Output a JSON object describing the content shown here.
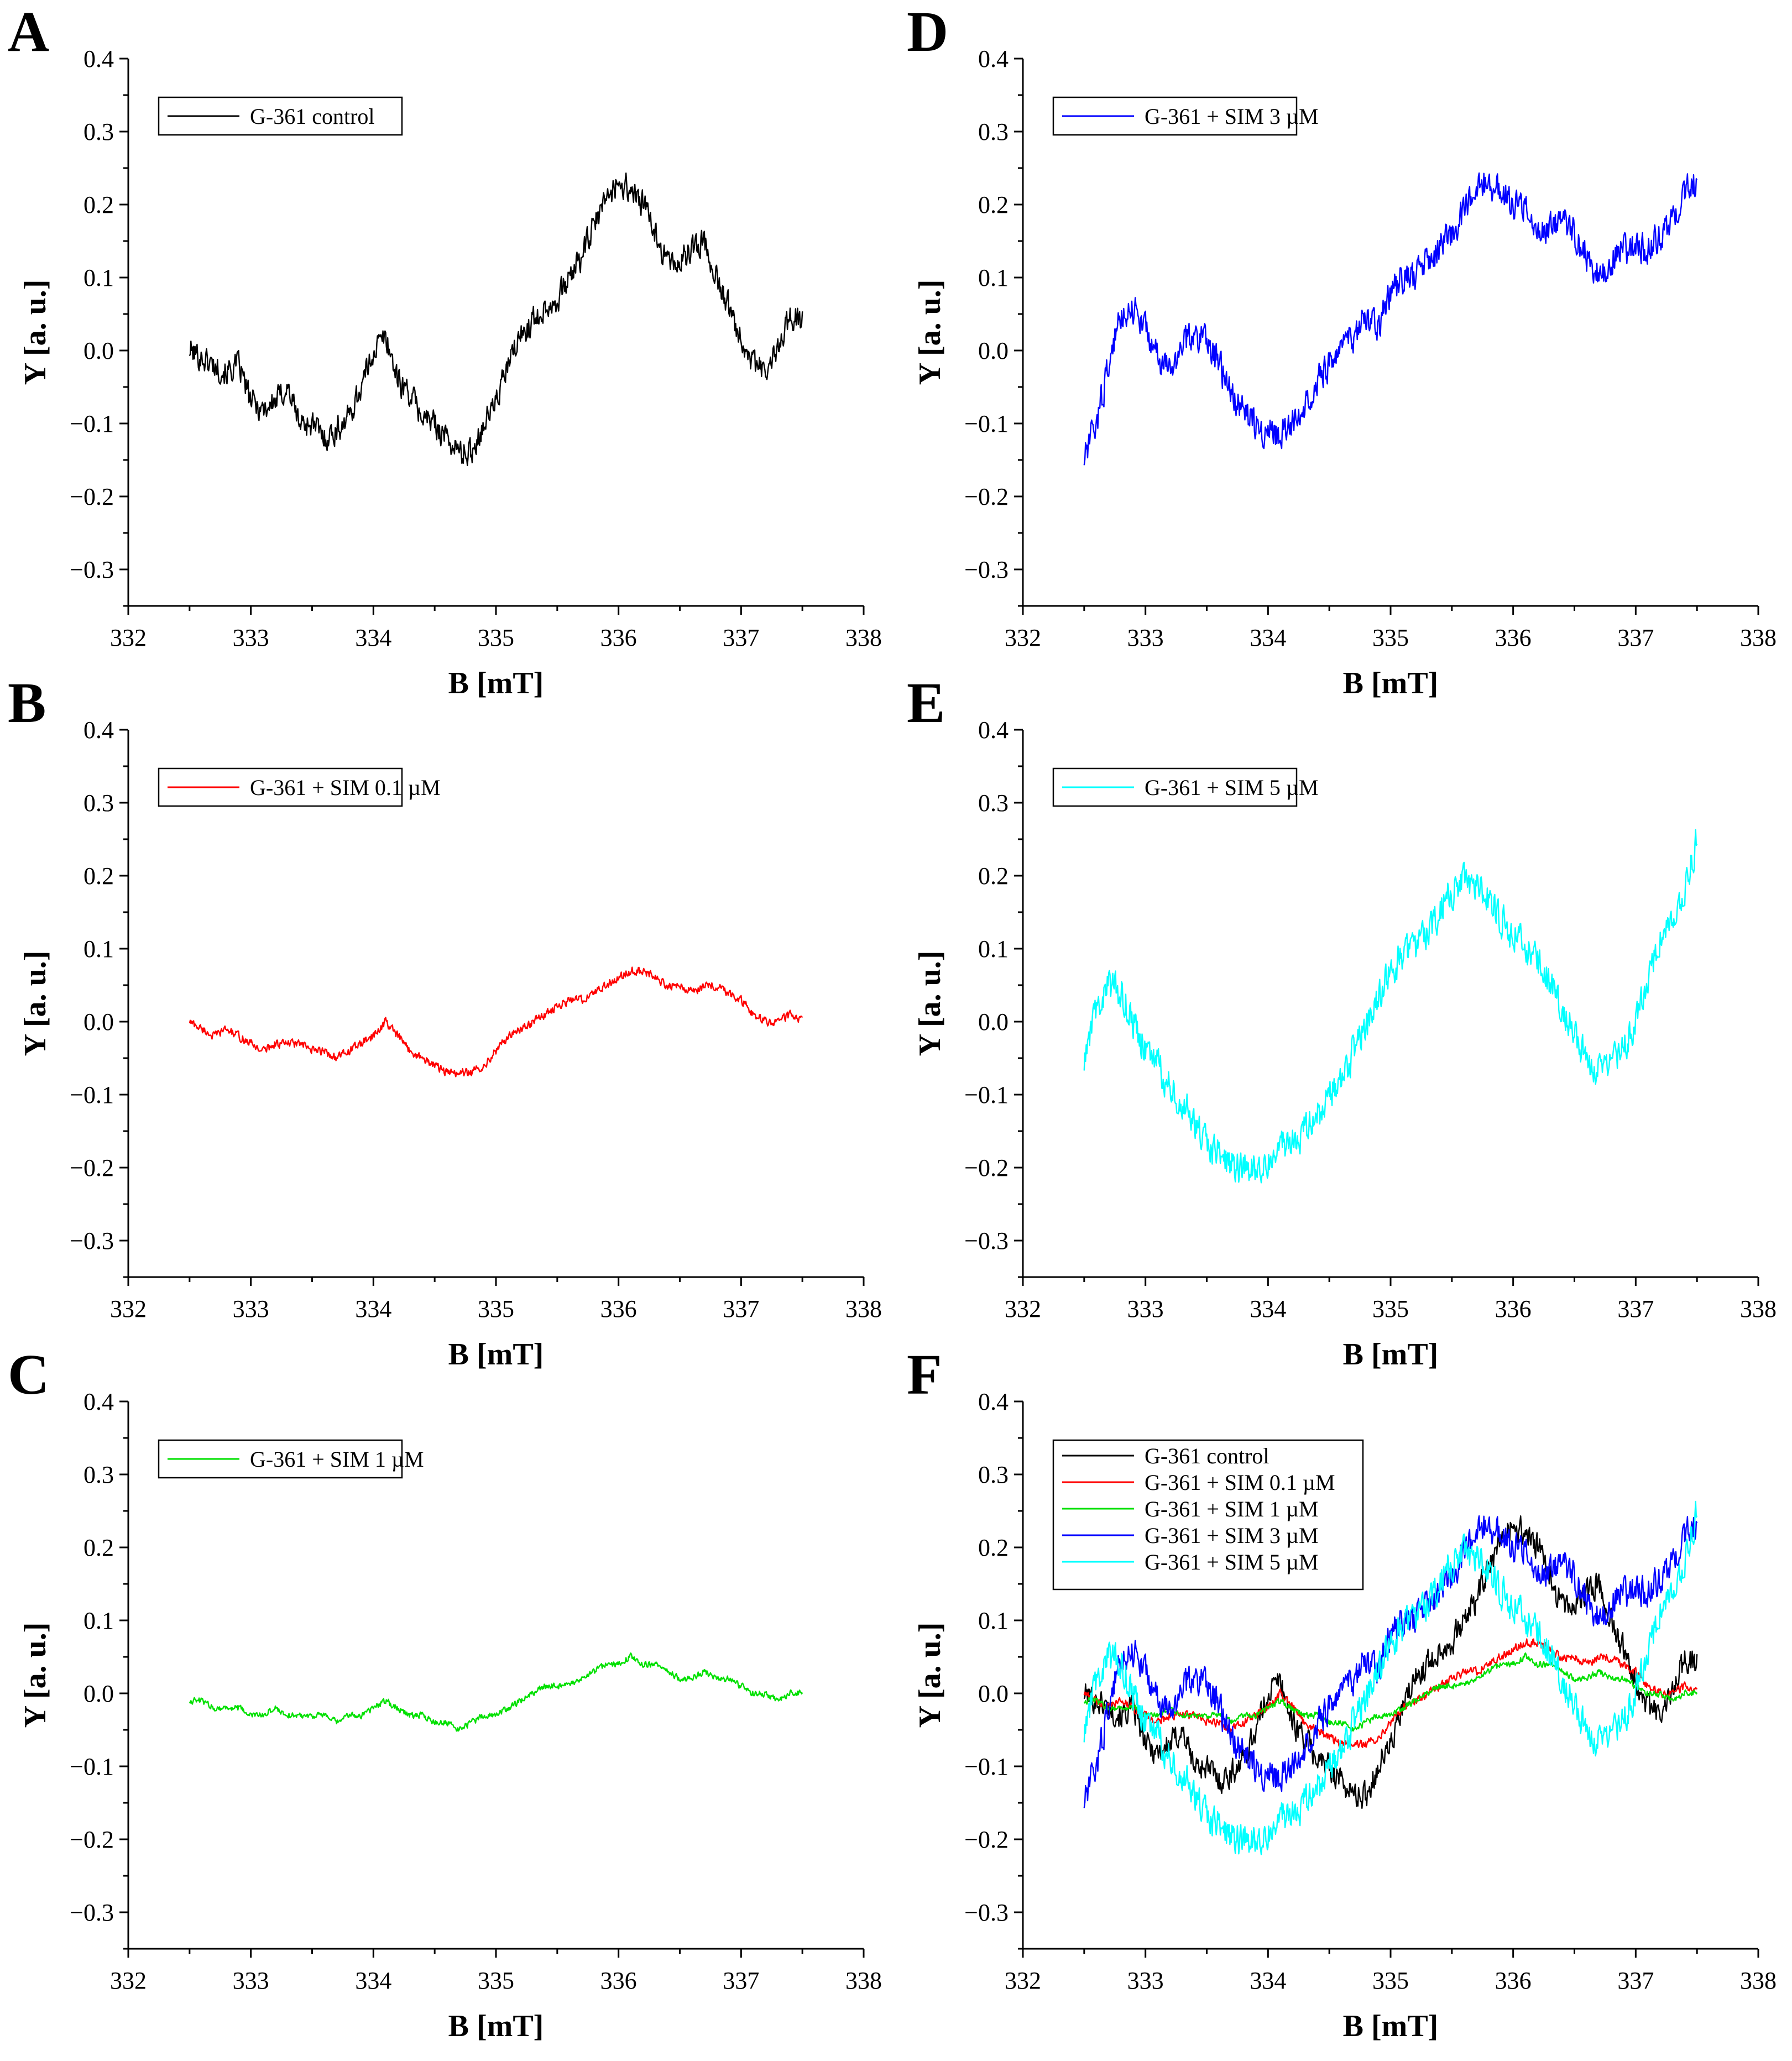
{
  "figure": {
    "colors": {
      "G-361 control": "#000000",
      "G-361 + SIM 0.1 µM": "#ff0000",
      "G-361 + SIM 1 µM": "#00e000",
      "G-361 + SIM 3 µM": "#0000ff",
      "G-361 + SIM 5 µM": "#00ffff"
    }
  },
  "chart_data": [
    {
      "panel": "A",
      "type": "line",
      "title": "",
      "xlabel": "B [mT]",
      "ylabel": "Y [a. u.]",
      "xlim": [
        332,
        338
      ],
      "ylim": [
        -0.35,
        0.4
      ],
      "xticks": [
        "332",
        "333",
        "334",
        "335",
        "336",
        "337",
        "338"
      ],
      "yticks": [
        "−0.3",
        "−0.2",
        "−0.1",
        "0.0",
        "0.1",
        "0.2",
        "0.3",
        "0.4"
      ],
      "legend_position": "top-left",
      "series": [
        {
          "name": "G-361 control",
          "color": "#000000",
          "noise": 0.025,
          "x": [
            332.5,
            332.6,
            332.7,
            332.8,
            332.9,
            333.0,
            333.1,
            333.2,
            333.3,
            333.4,
            333.5,
            333.6,
            333.7,
            333.8,
            333.9,
            334.0,
            334.1,
            334.2,
            334.3,
            334.4,
            334.5,
            334.6,
            334.7,
            334.8,
            334.9,
            335.0,
            335.1,
            335.2,
            335.3,
            335.4,
            335.5,
            335.6,
            335.7,
            335.8,
            335.9,
            336.0,
            336.1,
            336.2,
            336.3,
            336.4,
            336.5,
            336.6,
            336.7,
            336.8,
            336.9,
            337.0,
            337.1,
            337.2,
            337.3,
            337.4,
            337.5
          ],
          "y": [
            0.0,
            -0.01,
            -0.02,
            -0.03,
            -0.02,
            -0.07,
            -0.08,
            -0.07,
            -0.05,
            -0.1,
            -0.1,
            -0.12,
            -0.11,
            -0.09,
            -0.05,
            0.0,
            0.02,
            -0.04,
            -0.06,
            -0.09,
            -0.1,
            -0.12,
            -0.14,
            -0.14,
            -0.1,
            -0.07,
            -0.02,
            0.02,
            0.04,
            0.06,
            0.07,
            0.1,
            0.13,
            0.17,
            0.21,
            0.23,
            0.22,
            0.2,
            0.16,
            0.12,
            0.12,
            0.14,
            0.15,
            0.1,
            0.06,
            0.02,
            -0.02,
            -0.03,
            0.0,
            0.05,
            0.04
          ]
        }
      ]
    },
    {
      "panel": "B",
      "type": "line",
      "title": "",
      "xlabel": "B [mT]",
      "ylabel": "Y [a. u.]",
      "xlim": [
        332,
        338
      ],
      "ylim": [
        -0.35,
        0.4
      ],
      "xticks": [
        "332",
        "333",
        "334",
        "335",
        "336",
        "337",
        "338"
      ],
      "yticks": [
        "−0.3",
        "−0.2",
        "−0.1",
        "0.0",
        "0.1",
        "0.2",
        "0.3",
        "0.4"
      ],
      "legend_position": "top-left",
      "series": [
        {
          "name": "G-361 + SIM 0.1 µM",
          "color": "#ff0000",
          "noise": 0.008,
          "x": [
            332.5,
            332.6,
            332.7,
            332.8,
            332.9,
            333.0,
            333.1,
            333.2,
            333.3,
            333.4,
            333.5,
            333.6,
            333.7,
            333.8,
            333.9,
            334.0,
            334.1,
            334.2,
            334.3,
            334.4,
            334.5,
            334.6,
            334.7,
            334.8,
            334.9,
            335.0,
            335.1,
            335.2,
            335.3,
            335.4,
            335.5,
            335.6,
            335.7,
            335.8,
            335.9,
            336.0,
            336.1,
            336.2,
            336.3,
            336.4,
            336.5,
            336.6,
            336.7,
            336.8,
            336.9,
            337.0,
            337.1,
            337.2,
            337.3,
            337.4,
            337.5
          ],
          "y": [
            0.0,
            -0.01,
            -0.02,
            -0.01,
            -0.02,
            -0.03,
            -0.04,
            -0.03,
            -0.03,
            -0.03,
            -0.04,
            -0.04,
            -0.05,
            -0.04,
            -0.03,
            -0.02,
            0.0,
            -0.02,
            -0.04,
            -0.05,
            -0.06,
            -0.07,
            -0.07,
            -0.07,
            -0.06,
            -0.04,
            -0.02,
            -0.01,
            0.0,
            0.01,
            0.02,
            0.03,
            0.03,
            0.04,
            0.05,
            0.06,
            0.07,
            0.07,
            0.06,
            0.05,
            0.05,
            0.04,
            0.05,
            0.05,
            0.04,
            0.03,
            0.01,
            0.0,
            0.0,
            0.01,
            0.0
          ]
        }
      ]
    },
    {
      "panel": "C",
      "type": "line",
      "title": "",
      "xlabel": "B [mT]",
      "ylabel": "Y [a. u.]",
      "xlim": [
        332,
        338
      ],
      "ylim": [
        -0.35,
        0.4
      ],
      "xticks": [
        "332",
        "333",
        "334",
        "335",
        "336",
        "337",
        "338"
      ],
      "yticks": [
        "−0.3",
        "−0.2",
        "−0.1",
        "0.0",
        "0.1",
        "0.2",
        "0.3",
        "0.4"
      ],
      "legend_position": "top-left",
      "series": [
        {
          "name": "G-361 + SIM 1 µM",
          "color": "#00e000",
          "noise": 0.006,
          "x": [
            332.5,
            332.6,
            332.7,
            332.8,
            332.9,
            333.0,
            333.1,
            333.2,
            333.3,
            333.4,
            333.5,
            333.6,
            333.7,
            333.8,
            333.9,
            334.0,
            334.1,
            334.2,
            334.3,
            334.4,
            334.5,
            334.6,
            334.7,
            334.8,
            334.9,
            335.0,
            335.1,
            335.2,
            335.3,
            335.4,
            335.5,
            335.6,
            335.7,
            335.8,
            335.9,
            336.0,
            336.1,
            336.2,
            336.3,
            336.4,
            336.5,
            336.6,
            336.7,
            336.8,
            336.9,
            337.0,
            337.1,
            337.2,
            337.3,
            337.4,
            337.5
          ],
          "y": [
            -0.01,
            -0.01,
            -0.02,
            -0.02,
            -0.02,
            -0.03,
            -0.03,
            -0.02,
            -0.03,
            -0.03,
            -0.03,
            -0.03,
            -0.04,
            -0.03,
            -0.03,
            -0.02,
            -0.01,
            -0.02,
            -0.03,
            -0.03,
            -0.04,
            -0.04,
            -0.05,
            -0.04,
            -0.03,
            -0.03,
            -0.02,
            -0.01,
            0.0,
            0.01,
            0.01,
            0.01,
            0.02,
            0.03,
            0.04,
            0.04,
            0.05,
            0.04,
            0.04,
            0.03,
            0.02,
            0.02,
            0.03,
            0.02,
            0.02,
            0.01,
            0.0,
            0.0,
            -0.01,
            0.0,
            0.0
          ]
        }
      ]
    },
    {
      "panel": "D",
      "type": "line",
      "title": "",
      "xlabel": "B [mT]",
      "ylabel": "Y [a. u.]",
      "xlim": [
        332,
        338
      ],
      "ylim": [
        -0.35,
        0.4
      ],
      "xticks": [
        "332",
        "333",
        "334",
        "335",
        "336",
        "337",
        "338"
      ],
      "yticks": [
        "−0.3",
        "−0.2",
        "−0.1",
        "0.0",
        "0.1",
        "0.2",
        "0.3",
        "0.4"
      ],
      "legend_position": "top-left",
      "series": [
        {
          "name": "G-361 + SIM 3 µM",
          "color": "#0000ff",
          "noise": 0.03,
          "x": [
            332.5,
            332.6,
            332.7,
            332.8,
            332.9,
            333.0,
            333.1,
            333.2,
            333.3,
            333.4,
            333.5,
            333.6,
            333.7,
            333.8,
            333.9,
            334.0,
            334.1,
            334.2,
            334.3,
            334.4,
            334.5,
            334.6,
            334.7,
            334.8,
            334.9,
            335.0,
            335.1,
            335.2,
            335.3,
            335.4,
            335.5,
            335.6,
            335.7,
            335.8,
            335.9,
            336.0,
            336.1,
            336.2,
            336.3,
            336.4,
            336.5,
            336.6,
            336.7,
            336.8,
            336.9,
            337.0,
            337.1,
            337.2,
            337.3,
            337.4,
            337.5
          ],
          "y": [
            -0.15,
            -0.1,
            -0.02,
            0.05,
            0.06,
            0.03,
            -0.01,
            -0.03,
            0.01,
            0.02,
            0.02,
            -0.02,
            -0.06,
            -0.08,
            -0.1,
            -0.11,
            -0.12,
            -0.1,
            -0.07,
            -0.04,
            -0.02,
            0.0,
            0.02,
            0.04,
            0.03,
            0.08,
            0.1,
            0.1,
            0.12,
            0.14,
            0.16,
            0.19,
            0.22,
            0.23,
            0.22,
            0.2,
            0.19,
            0.17,
            0.17,
            0.18,
            0.16,
            0.13,
            0.1,
            0.12,
            0.14,
            0.14,
            0.14,
            0.16,
            0.18,
            0.22,
            0.23
          ]
        }
      ]
    },
    {
      "panel": "E",
      "type": "line",
      "title": "",
      "xlabel": "B [mT]",
      "ylabel": "Y [a. u.]",
      "xlim": [
        332,
        338
      ],
      "ylim": [
        -0.35,
        0.4
      ],
      "xticks": [
        "332",
        "333",
        "334",
        "335",
        "336",
        "337",
        "338"
      ],
      "yticks": [
        "−0.3",
        "−0.2",
        "−0.1",
        "0.0",
        "0.1",
        "0.2",
        "0.3",
        "0.4"
      ],
      "legend_position": "top-left",
      "series": [
        {
          "name": "G-361 + SIM 5 µM",
          "color": "#00ffff",
          "noise": 0.032,
          "x": [
            332.5,
            332.6,
            332.7,
            332.8,
            332.9,
            333.0,
            333.1,
            333.2,
            333.3,
            333.4,
            333.5,
            333.6,
            333.7,
            333.8,
            333.9,
            334.0,
            334.1,
            334.2,
            334.3,
            334.4,
            334.5,
            334.6,
            334.7,
            334.8,
            334.9,
            335.0,
            335.1,
            335.2,
            335.3,
            335.4,
            335.5,
            335.6,
            335.7,
            335.8,
            335.9,
            336.0,
            336.1,
            336.2,
            336.3,
            336.4,
            336.5,
            336.6,
            336.7,
            336.8,
            336.9,
            337.0,
            337.1,
            337.2,
            337.3,
            337.4,
            337.5
          ],
          "y": [
            -0.06,
            0.02,
            0.05,
            0.04,
            0.0,
            -0.04,
            -0.06,
            -0.09,
            -0.11,
            -0.14,
            -0.17,
            -0.18,
            -0.2,
            -0.2,
            -0.2,
            -0.19,
            -0.17,
            -0.16,
            -0.15,
            -0.13,
            -0.1,
            -0.08,
            -0.04,
            -0.01,
            0.03,
            0.07,
            0.09,
            0.1,
            0.12,
            0.15,
            0.18,
            0.19,
            0.19,
            0.17,
            0.14,
            0.12,
            0.1,
            0.08,
            0.05,
            0.02,
            -0.02,
            -0.05,
            -0.07,
            -0.06,
            -0.04,
            0.0,
            0.06,
            0.11,
            0.13,
            0.18,
            0.25
          ]
        }
      ]
    },
    {
      "panel": "F",
      "type": "line",
      "title": "",
      "xlabel": "B [mT]",
      "ylabel": "Y [a. u.]",
      "xlim": [
        332,
        338
      ],
      "ylim": [
        -0.35,
        0.4
      ],
      "xticks": [
        "332",
        "333",
        "334",
        "335",
        "336",
        "337",
        "338"
      ],
      "yticks": [
        "−0.3",
        "−0.2",
        "−0.1",
        "0.0",
        "0.1",
        "0.2",
        "0.3",
        "0.4"
      ],
      "legend_position": "top-left",
      "overlay_of": [
        "A",
        "B",
        "C",
        "D",
        "E"
      ],
      "series_names": [
        "G-361 control",
        "G-361 + SIM 0.1 µM",
        "G-361 + SIM 1 µM",
        "G-361 + SIM 3 µM",
        "G-361 + SIM 5 µM"
      ],
      "series": []
    }
  ]
}
